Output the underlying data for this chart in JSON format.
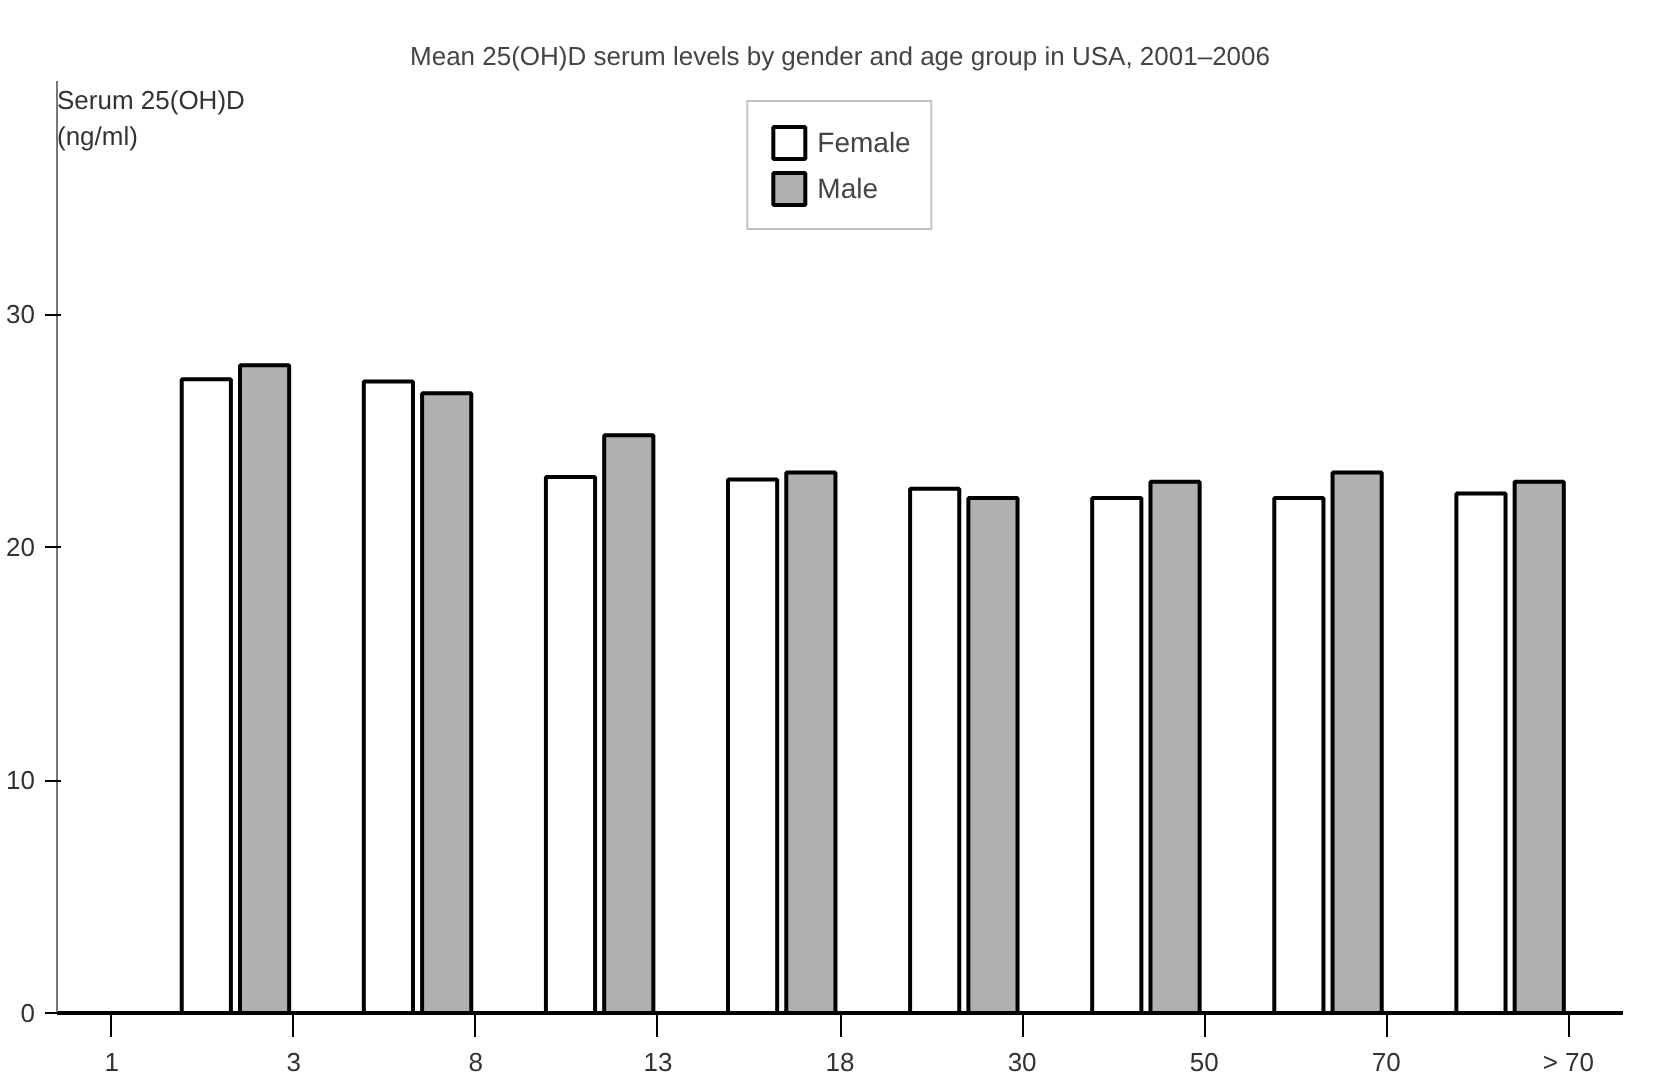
{
  "chart_data": {
    "type": "bar",
    "title": "Mean 25(OH)D serum levels by gender and age group in USA, 2001–2006",
    "ylabel": "Serum 25(OH)D\n(ng/ml)",
    "categories": [
      "1",
      "3",
      "8",
      "13",
      "18",
      "30",
      "50",
      "70",
      "> 70"
    ],
    "ylim": [
      0,
      40
    ],
    "yticks": [
      0,
      10,
      20,
      30
    ],
    "grid": false,
    "legend": "top",
    "series": [
      {
        "name": "Female",
        "color": "#ffffff",
        "values": [
          null,
          27.2,
          27.1,
          23.0,
          22.9,
          22.5,
          22.1,
          22.1,
          22.3
        ]
      },
      {
        "name": "Male",
        "color": "#b0b0b0",
        "values": [
          null,
          27.8,
          26.6,
          24.8,
          23.2,
          22.1,
          22.8,
          23.2,
          22.8
        ]
      }
    ]
  }
}
